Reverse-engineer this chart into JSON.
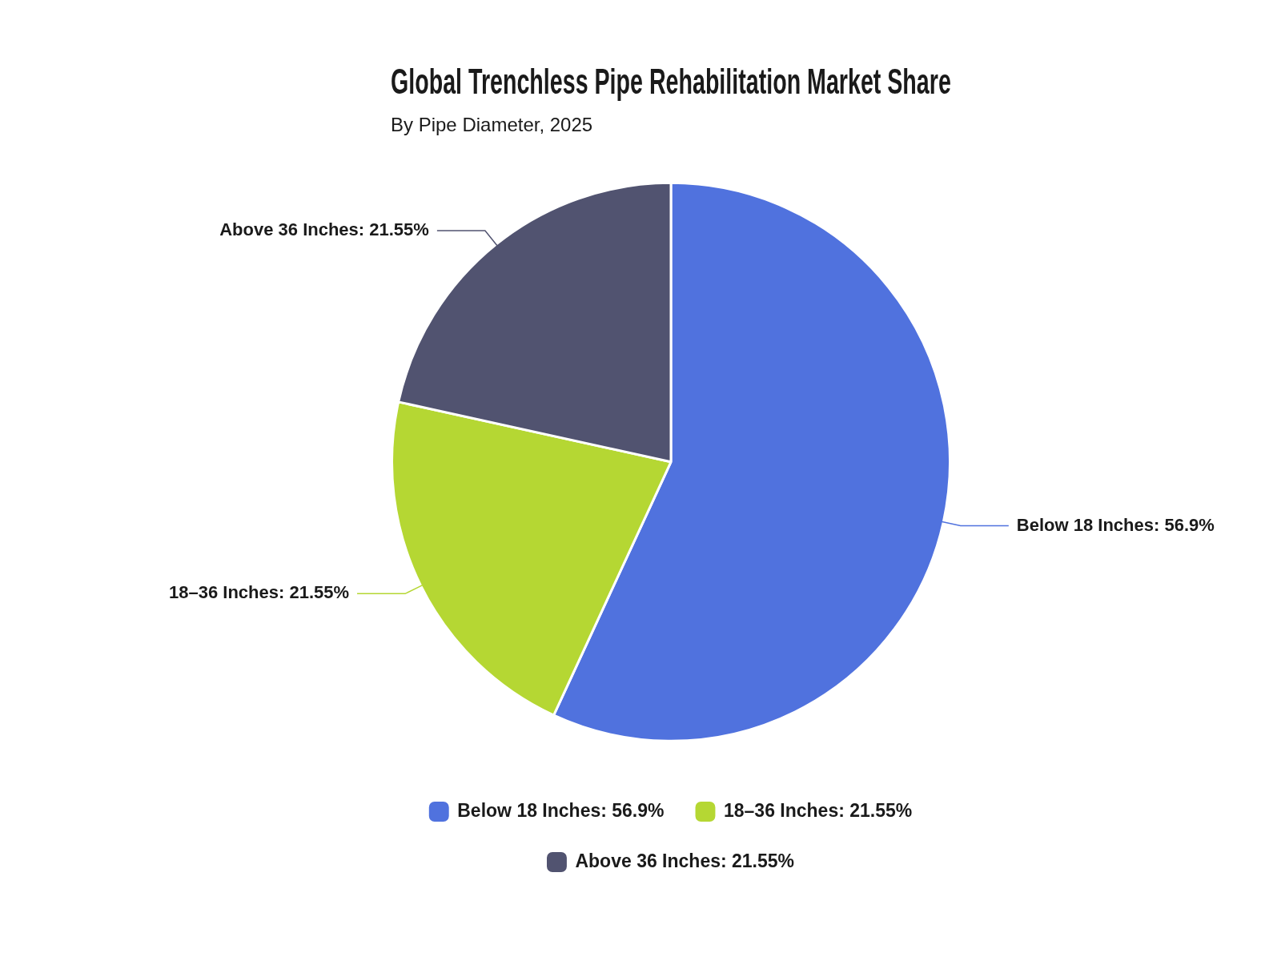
{
  "chart_data": {
    "type": "pie",
    "title": "Global Trenchless Pipe Rehabilitation Market Share",
    "subtitle": "By Pipe Diameter, 2025",
    "categories": [
      "Below 18 Inches: 56.9%",
      "18–36 Inches: 21.55%",
      "Above 36 Inches: 21.55%"
    ],
    "values": [
      56.9,
      21.55,
      21.55
    ],
    "colors": [
      "#5072de",
      "#b5d733",
      "#515370"
    ],
    "legend": "bottom"
  }
}
